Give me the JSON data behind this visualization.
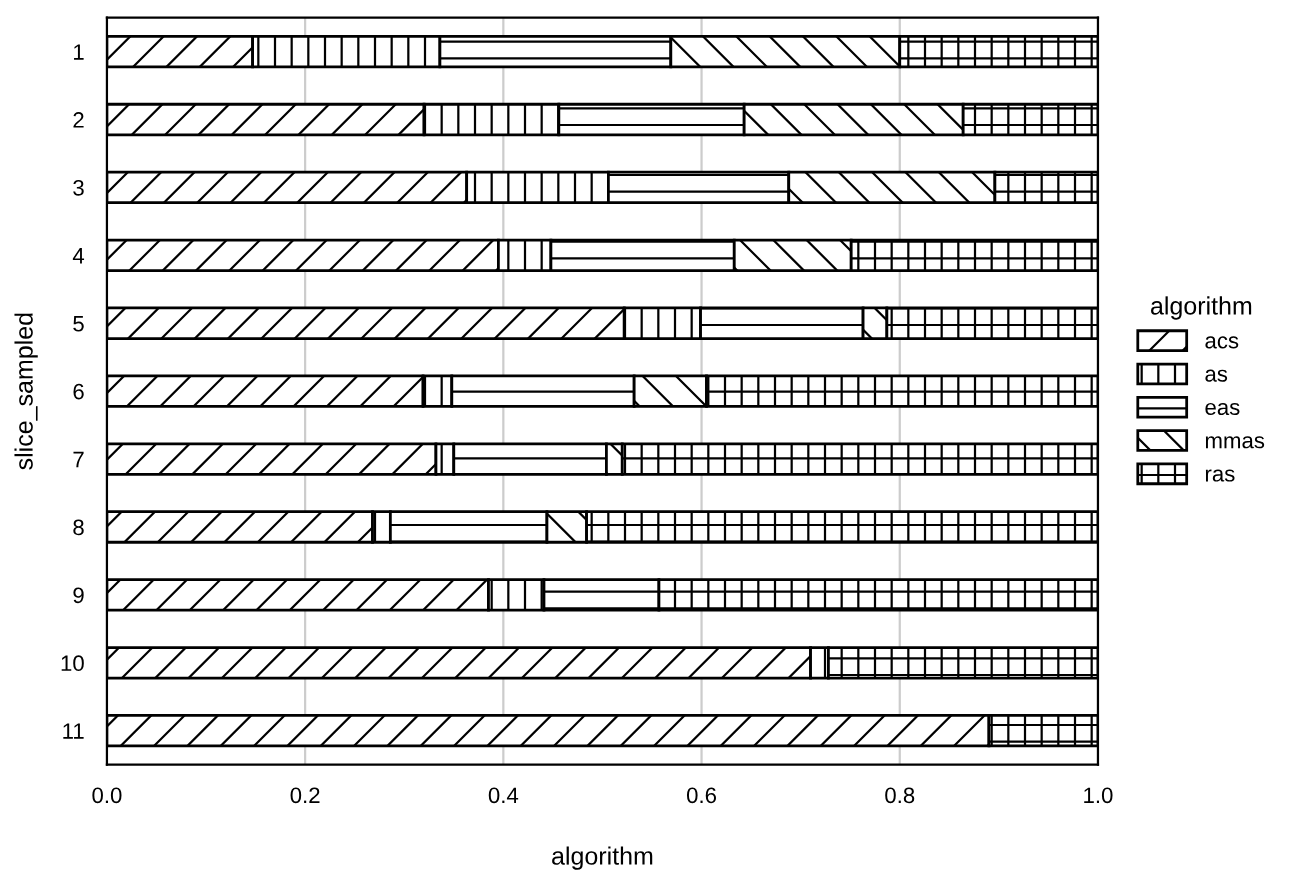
{
  "chart_data": {
    "type": "bar",
    "orientation": "horizontal",
    "stacked": true,
    "xlabel": "algorithm",
    "ylabel": "slice_sampled",
    "legend_title": "algorithm",
    "legend": "right",
    "grid": "x",
    "categories": [
      "1",
      "2",
      "3",
      "4",
      "5",
      "6",
      "7",
      "8",
      "9",
      "10",
      "11"
    ],
    "xlim": [
      0,
      1
    ],
    "xticks": [
      {
        "value": 0,
        "label": "0.0"
      },
      {
        "value": 0.2,
        "label": "0.2"
      },
      {
        "value": 0.4,
        "label": "0.4"
      },
      {
        "value": 0.6,
        "label": "0.6"
      },
      {
        "value": 0.8,
        "label": "0.8"
      },
      {
        "value": 1,
        "label": "1.0"
      }
    ],
    "series": [
      {
        "name": "acs",
        "color": "#000000",
        "values": [
          0.147,
          0.32,
          0.363,
          0.395,
          0.522,
          0.319,
          0.332,
          0.268,
          0.385,
          0.71,
          0.89
        ]
      },
      {
        "name": "as",
        "color": "#000000",
        "values": [
          0.189,
          0.136,
          0.143,
          0.053,
          0.077,
          0.029,
          0.018,
          0.018,
          0.056,
          0.018,
          null
        ]
      },
      {
        "name": "eas",
        "color": "#000000",
        "values": [
          0.233,
          0.187,
          0.182,
          0.185,
          0.164,
          0.184,
          0.154,
          0.158,
          0.116,
          null,
          null
        ]
      },
      {
        "name": "mmas",
        "color": "#000000",
        "values": [
          0.231,
          0.221,
          0.208,
          0.118,
          0.024,
          0.073,
          0.016,
          0.04,
          null,
          null,
          null
        ]
      },
      {
        "name": "ras",
        "color": "#000000",
        "values": [
          0.2,
          0.136,
          0.104,
          0.249,
          0.213,
          0.395,
          0.48,
          0.516,
          0.443,
          0.272,
          0.11
        ]
      }
    ]
  }
}
